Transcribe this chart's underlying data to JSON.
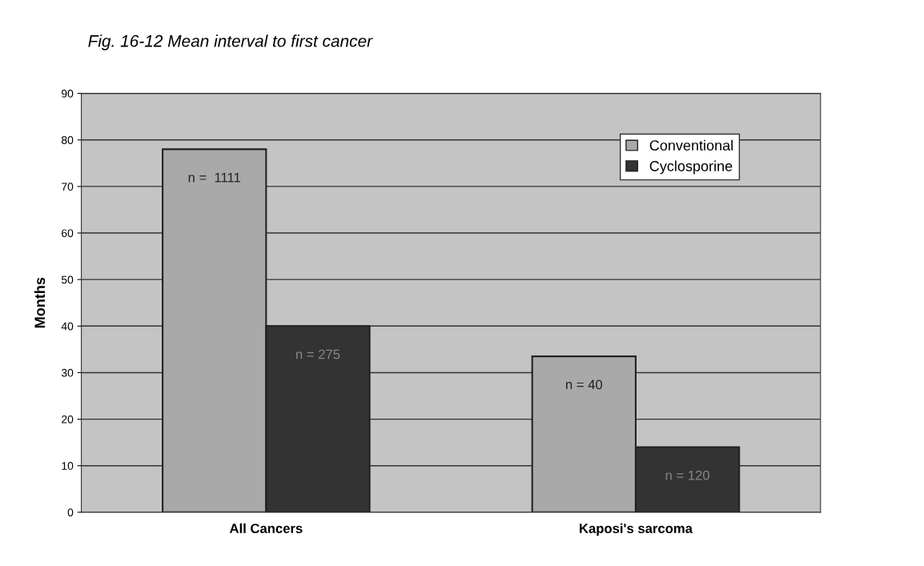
{
  "chart_data": {
    "type": "bar",
    "title": "Fig. 16-12 Mean interval to first cancer",
    "ylabel": "Months",
    "categories": [
      "All Cancers",
      "Kaposi's sarcoma"
    ],
    "series": [
      {
        "name": "Conventional",
        "color": "#a9a9a9",
        "values": [
          78,
          33.5
        ]
      },
      {
        "name": "Cyclosporine",
        "color": "#333333",
        "values": [
          40,
          14
        ]
      }
    ],
    "annotations": [
      "n =  1111",
      "n = 40",
      "n = 275",
      "n = 120"
    ],
    "ylim": [
      0,
      90
    ],
    "yticks": [
      0,
      10,
      20,
      30,
      40,
      50,
      60,
      70,
      80,
      90
    ],
    "grid": "y",
    "legend": "top right"
  }
}
